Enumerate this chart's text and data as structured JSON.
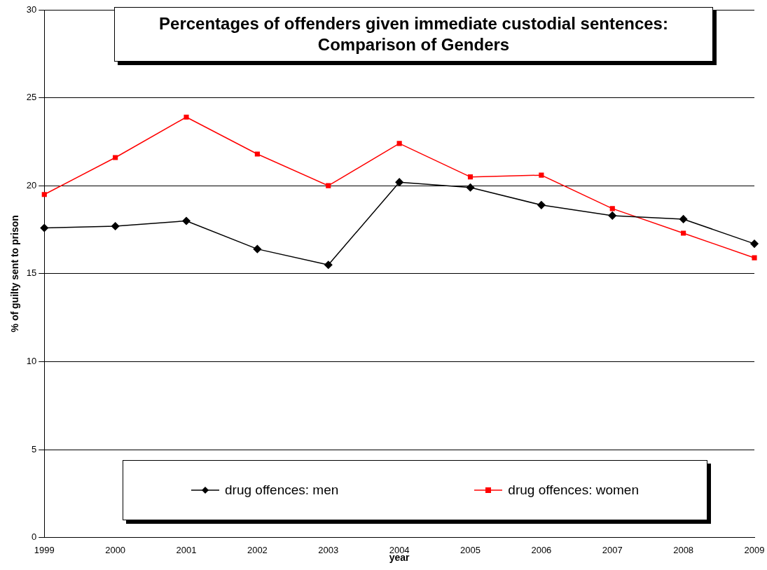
{
  "chart_data": {
    "type": "line",
    "title": "Percentages of offenders given immediate custodial sentences: Comparison of Genders",
    "xlabel": "year",
    "ylabel": "% of guilty sent to prison",
    "categories": [
      "1999",
      "2000",
      "2001",
      "2002",
      "2003",
      "2004",
      "2005",
      "2006",
      "2007",
      "2008",
      "2009"
    ],
    "series": [
      {
        "name": "drug offences: men",
        "color": "#000000",
        "marker": "diamond",
        "values": [
          17.6,
          17.7,
          18.0,
          16.4,
          15.5,
          20.2,
          19.9,
          18.9,
          18.3,
          18.1,
          16.7
        ]
      },
      {
        "name": "drug offences: women",
        "color": "#ff0000",
        "marker": "square",
        "values": [
          19.5,
          21.6,
          23.9,
          21.8,
          20.0,
          22.4,
          20.5,
          20.6,
          18.7,
          17.3,
          15.9
        ]
      }
    ],
    "ylim": [
      0,
      30
    ],
    "yticks": [
      0,
      5,
      10,
      15,
      20,
      25,
      30
    ],
    "grid": "y",
    "legend": "bottom",
    "line_style": "solid"
  }
}
